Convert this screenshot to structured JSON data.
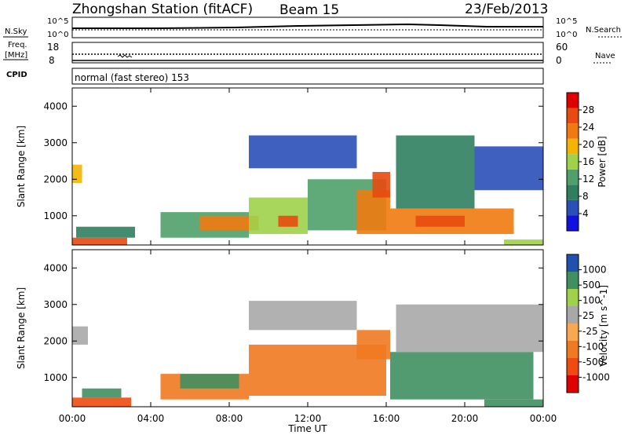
{
  "header": {
    "title": "Zhongshan Station (fitACF)",
    "beam": "Beam 15",
    "date": "23/Feb/2013"
  },
  "strips": {
    "nsky_label": "N.Sky",
    "nsky_ticks": [
      "10^5",
      "10^0"
    ],
    "nsearch_label": "N.Search",
    "nsearch_ticks": [
      "10^5",
      "10^0"
    ],
    "freq_label_line1": "Freq.",
    "freq_label_line2": "[MHz]",
    "freq_ticks": [
      "18",
      "8"
    ],
    "nave_label": "Nave",
    "nave_ticks": [
      "60",
      "0"
    ],
    "cpid_label": "CPID",
    "cpid_text": "normal (fast stereo) 153"
  },
  "colors": {
    "power_scale": [
      "#1010e0",
      "#2a4fb8",
      "#2f7f5f",
      "#4fa06a",
      "#9fd24a",
      "#f4b400",
      "#f07a10",
      "#e84a10",
      "#e00000"
    ],
    "velocity_scale": [
      "#e00000",
      "#f04a10",
      "#f07a20",
      "#f8a850",
      "#c8c8c8",
      "#9fd24a",
      "#3f8f5f",
      "#2f7f5f",
      "#2050b0"
    ],
    "ground_scatter": "#a8a8a8"
  },
  "chart_data": [
    {
      "type": "heatmap",
      "name": "power",
      "ylabel": "Slant Range [km]",
      "yticks": [
        "1000",
        "2000",
        "3000",
        "4000"
      ],
      "ylim": [
        200,
        4500
      ],
      "xticks": [
        "00:00",
        "04:00",
        "08:00",
        "12:00",
        "16:00",
        "20:00",
        "00:00"
      ],
      "xlim": [
        0,
        24
      ],
      "colorbar": {
        "label": "Power [dB]",
        "ticks": [
          "4",
          "8",
          "12",
          "16",
          "20",
          "24",
          "28"
        ],
        "range": [
          0,
          32
        ]
      },
      "regions": [
        {
          "t0": 0.0,
          "t1": 2.8,
          "r0": 200,
          "r1": 400,
          "v": 28
        },
        {
          "t0": 0.2,
          "t1": 3.2,
          "r0": 400,
          "r1": 700,
          "v": 10
        },
        {
          "t0": 0.0,
          "t1": 0.5,
          "r0": 1900,
          "r1": 2400,
          "v": 18
        },
        {
          "t0": 4.5,
          "t1": 9.0,
          "r0": 400,
          "r1": 1100,
          "v": 12
        },
        {
          "t0": 6.5,
          "t1": 9.5,
          "r0": 600,
          "r1": 1000,
          "v": 22
        },
        {
          "t0": 9.0,
          "t1": 12.0,
          "r0": 500,
          "r1": 1500,
          "v": 16
        },
        {
          "t0": 10.5,
          "t1": 11.5,
          "r0": 700,
          "r1": 1000,
          "v": 26
        },
        {
          "t0": 12.0,
          "t1": 16.0,
          "r0": 600,
          "r1": 2000,
          "v": 14
        },
        {
          "t0": 14.5,
          "t1": 16.2,
          "r0": 500,
          "r1": 1700,
          "v": 24
        },
        {
          "t0": 15.3,
          "t1": 16.2,
          "r0": 1500,
          "r1": 2200,
          "v": 26
        },
        {
          "t0": 16.2,
          "t1": 22.5,
          "r0": 500,
          "r1": 1200,
          "v": 22
        },
        {
          "t0": 17.5,
          "t1": 20.0,
          "r0": 700,
          "r1": 1000,
          "v": 28
        },
        {
          "t0": 16.5,
          "t1": 20.5,
          "r0": 1200,
          "r1": 3200,
          "v": 8
        },
        {
          "t0": 20.5,
          "t1": 24.0,
          "r0": 1700,
          "r1": 2900,
          "v": 6
        },
        {
          "t0": 9.0,
          "t1": 14.5,
          "r0": 2300,
          "r1": 3200,
          "v": 6
        },
        {
          "t0": 22.0,
          "t1": 24.0,
          "r0": 200,
          "r1": 350,
          "v": 16
        }
      ]
    },
    {
      "type": "heatmap",
      "name": "velocity",
      "ylabel": "Slant Range [km]",
      "yticks": [
        "1000",
        "2000",
        "3000",
        "4000"
      ],
      "ylim": [
        200,
        4500
      ],
      "xticks": [
        "00:00",
        "04:00",
        "08:00",
        "12:00",
        "16:00",
        "20:00",
        "00:00"
      ],
      "xlim": [
        0,
        24
      ],
      "xlabel": "Time UT",
      "colorbar": {
        "label": "Velocity [m s^-1]",
        "ticks": [
          "-1000",
          "-500",
          "-100",
          "-25",
          "25",
          "100",
          "500",
          "1000"
        ]
      },
      "regions": [
        {
          "t0": 0.0,
          "t1": 3.0,
          "r0": 200,
          "r1": 450,
          "v": -500
        },
        {
          "t0": 0.5,
          "t1": 2.5,
          "r0": 450,
          "r1": 700,
          "v": 500
        },
        {
          "t0": 0.0,
          "t1": 0.8,
          "r0": 1900,
          "r1": 2400,
          "v": 0
        },
        {
          "t0": 4.5,
          "t1": 9.0,
          "r0": 400,
          "r1": 1100,
          "v": -300
        },
        {
          "t0": 5.5,
          "t1": 8.5,
          "r0": 700,
          "r1": 1100,
          "v": 300
        },
        {
          "t0": 9.0,
          "t1": 16.0,
          "r0": 500,
          "r1": 1900,
          "v": -300
        },
        {
          "t0": 14.5,
          "t1": 16.2,
          "r0": 1500,
          "r1": 2300,
          "v": -400
        },
        {
          "t0": 16.2,
          "t1": 23.5,
          "r0": 400,
          "r1": 1700,
          "v": 300
        },
        {
          "t0": 16.5,
          "t1": 24.0,
          "r0": 1700,
          "r1": 3000,
          "v": 0
        },
        {
          "t0": 9.0,
          "t1": 14.5,
          "r0": 2300,
          "r1": 3100,
          "v": 0
        },
        {
          "t0": 21.0,
          "t1": 24.0,
          "r0": 200,
          "r1": 400,
          "v": 300
        }
      ]
    }
  ]
}
